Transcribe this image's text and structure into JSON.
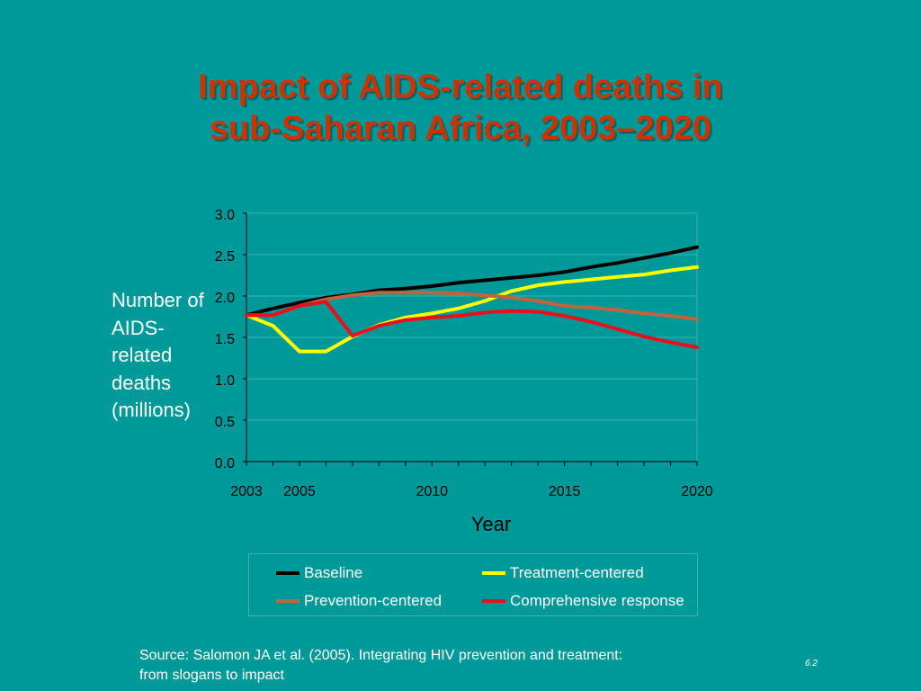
{
  "slide": {
    "title_line1": "Impact of AIDS-related deaths in",
    "title_line2": "sub-Saharan Africa, 2003–2020",
    "source_line1": "Source:  Salomon JA et al. (2005).  Integrating HIV prevention and treatment:",
    "source_line2": "from slogans to impact",
    "slide_number": "6.2"
  },
  "chart_data": {
    "type": "line",
    "ylabel": "Number of AIDS-related deaths (millions)",
    "xlabel": "Year",
    "ylim": [
      0,
      3.0
    ],
    "xlim": [
      2003,
      2020
    ],
    "yticks": [
      "0.0",
      "0.5",
      "1.0",
      "1.5",
      "2.0",
      "2.5",
      "3.0"
    ],
    "xticks": [
      "2003",
      "2005",
      "2010",
      "2015",
      "2020"
    ],
    "grid": true,
    "legend_position": "bottom",
    "x": [
      2003,
      2004,
      2005,
      2006,
      2007,
      2008,
      2009,
      2010,
      2011,
      2012,
      2013,
      2014,
      2015,
      2016,
      2017,
      2018,
      2019,
      2020
    ],
    "series": [
      {
        "name": "Baseline",
        "color": "#000000",
        "values": [
          1.77,
          1.85,
          1.92,
          1.98,
          2.02,
          2.07,
          2.09,
          2.12,
          2.16,
          2.19,
          2.22,
          2.25,
          2.29,
          2.35,
          2.4,
          2.46,
          2.52,
          2.59
        ]
      },
      {
        "name": "Treatment-centered",
        "color": "#ffff00",
        "values": [
          1.77,
          1.64,
          1.33,
          1.33,
          1.51,
          1.65,
          1.74,
          1.79,
          1.85,
          1.94,
          2.06,
          2.13,
          2.17,
          2.2,
          2.23,
          2.26,
          2.31,
          2.35
        ]
      },
      {
        "name": "Prevention-centered",
        "color": "#c0643c",
        "values": [
          1.77,
          1.77,
          1.88,
          1.96,
          2.01,
          2.04,
          2.04,
          2.04,
          2.03,
          2.01,
          1.98,
          1.94,
          1.88,
          1.86,
          1.83,
          1.79,
          1.76,
          1.72
        ]
      },
      {
        "name": "Comprehensive response",
        "color": "#e8101c",
        "values": [
          1.77,
          1.77,
          1.88,
          1.93,
          1.52,
          1.64,
          1.71,
          1.74,
          1.76,
          1.8,
          1.82,
          1.81,
          1.76,
          1.69,
          1.6,
          1.51,
          1.44,
          1.38
        ]
      }
    ]
  }
}
